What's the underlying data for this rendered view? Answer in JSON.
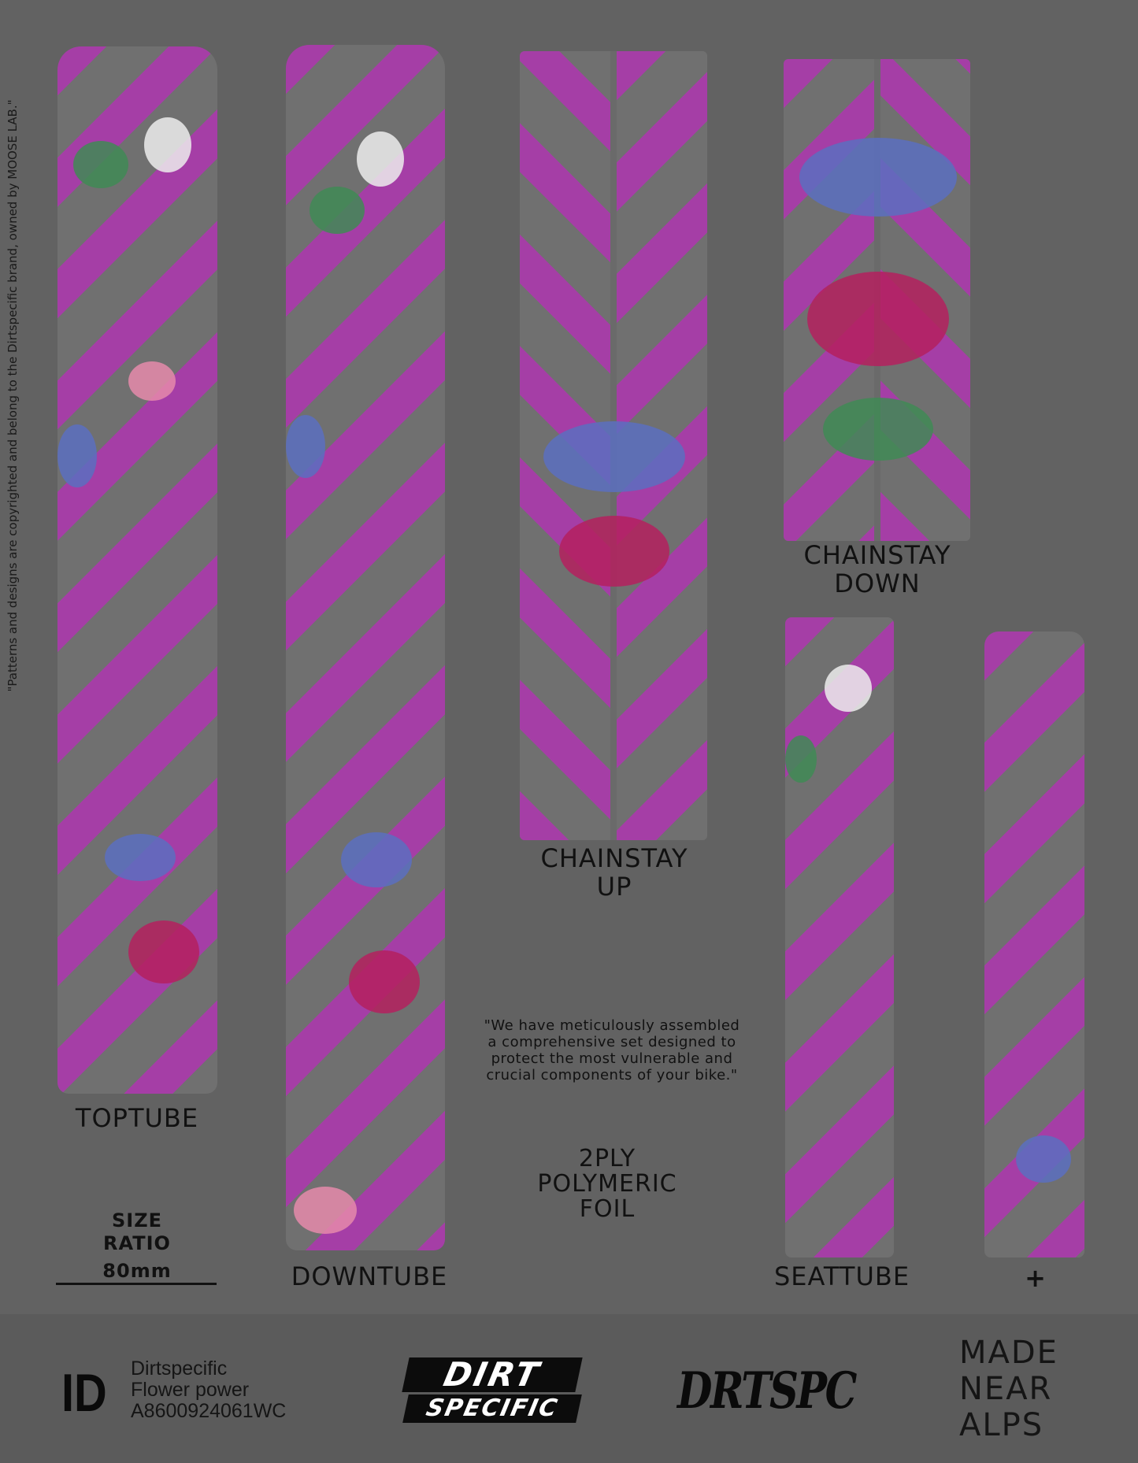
{
  "copyright_note": "\"Patterns and designs are copyrighted and belong to the Dirtspecific brand, owned by MOOSE LAB.\"",
  "pieces": {
    "toptube": "TOPTUBE",
    "downtube": "DOWNTUBE",
    "chainstay_up": [
      "CHAINSTAY",
      "UP"
    ],
    "chainstay_down": [
      "CHAINSTAY",
      "DOWN"
    ],
    "seattube": "SEATTUBE",
    "extra": "+"
  },
  "size_ratio": {
    "lines": [
      "SIZE",
      "RATIO"
    ],
    "value": "80mm"
  },
  "quote": [
    "\"We have meticulously assembled",
    "a  comprehensive set designed to",
    "protect the most vulnerable and",
    "crucial components of your bike.\""
  ],
  "material": [
    "2PLY",
    "POLYMERIC",
    "FOIL"
  ],
  "footer": {
    "id_mark": "ID",
    "id_lines": [
      "Dirtspecific",
      "Flower power",
      "A8600924061WC"
    ],
    "logo_main": [
      "DIRT",
      "SPECIFIC"
    ],
    "logo_script": "DRTSPC",
    "made": [
      "MADE",
      "NEAR",
      "ALPS"
    ]
  },
  "colors": {
    "background": "#626262",
    "pattern_magenta": "#a53ea6",
    "pattern_gray": "#707070",
    "footer": "#5b5b5b"
  }
}
